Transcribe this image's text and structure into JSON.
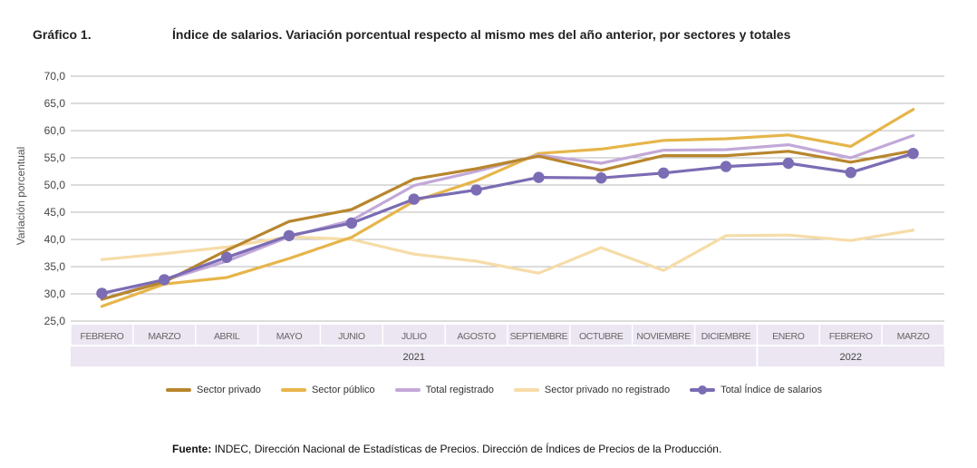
{
  "header": {
    "figure_label": "Gráfico 1.",
    "title": "Índice de salarios. Variación porcentual respecto al mismo mes del año anterior, por sectores y totales"
  },
  "source": {
    "label": "Fuente:",
    "text": "INDEC, Dirección Nacional de Estadísticas de Precios. Dirección de Índices de Precios de la Producción."
  },
  "chart_data": {
    "type": "line",
    "title": "Índice de salarios. Variación porcentual respecto al mismo mes del año anterior, por sectores y totales",
    "ylabel": "Variación porcentual",
    "xlabel": "",
    "ylim": [
      25,
      70
    ],
    "yticks": [
      "70,0",
      "65,0",
      "60,0",
      "55,0",
      "50,0",
      "45,0",
      "40,0",
      "35,0",
      "30,0",
      "25,0"
    ],
    "grid": true,
    "legend_position": "bottom",
    "categories": [
      "FEBRERO",
      "MARZO",
      "ABRIL",
      "MAYO",
      "JUNIO",
      "JULIO",
      "AGOSTO",
      "SEPTIEMBRE",
      "OCTUBRE",
      "NOVIEMBRE",
      "DICIEMBRE",
      "ENERO",
      "FEBRERO",
      "MARZO"
    ],
    "year_groups": [
      {
        "label": "2021",
        "count": 11
      },
      {
        "label": "2022",
        "count": 3
      }
    ],
    "series": [
      {
        "name": "Sector privado",
        "color": "#b8862e",
        "values": [
          29.0,
          32.2,
          38.0,
          43.3,
          45.5,
          51.1,
          53.0,
          55.3,
          52.7,
          55.4,
          55.4,
          56.2,
          54.2,
          56.3
        ]
      },
      {
        "name": "Sector público",
        "color": "#e6b54a",
        "values": [
          27.7,
          31.8,
          33.0,
          36.5,
          40.4,
          47.0,
          50.8,
          55.8,
          56.6,
          58.2,
          58.5,
          59.2,
          57.1,
          63.9
        ]
      },
      {
        "name": "Total registrado",
        "color": "#c2a8d8",
        "values": [
          29.0,
          32.5,
          36.0,
          40.5,
          43.5,
          49.9,
          52.5,
          55.5,
          54.0,
          56.4,
          56.5,
          57.4,
          55.0,
          59.1
        ]
      },
      {
        "name": "Sector privado no registrado",
        "color": "#f6dca8",
        "values": [
          36.3,
          37.4,
          38.6,
          40.5,
          40.0,
          37.3,
          36.0,
          33.8,
          38.5,
          34.3,
          40.7,
          40.8,
          39.8,
          41.7
        ]
      },
      {
        "name": "Total Índice de salarios",
        "color": "#7b6cb4",
        "markers": true,
        "values": [
          30.1,
          32.6,
          36.7,
          40.7,
          43.0,
          47.4,
          49.1,
          51.4,
          51.3,
          52.2,
          53.4,
          54.0,
          52.3,
          55.8
        ]
      }
    ]
  }
}
